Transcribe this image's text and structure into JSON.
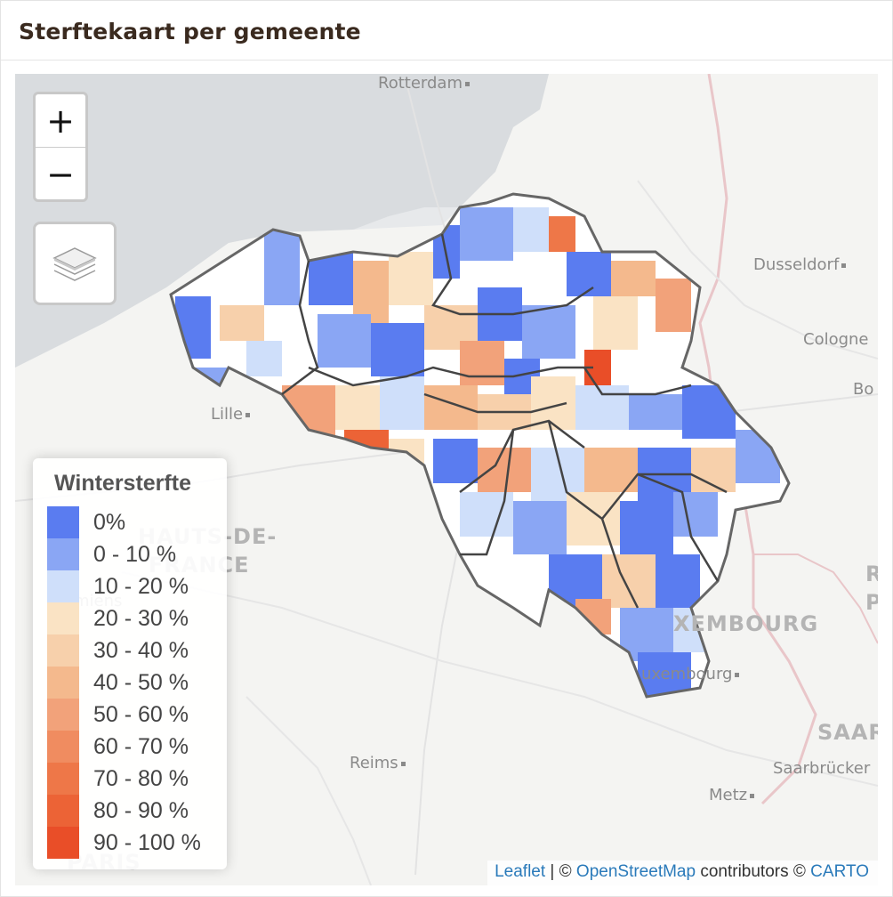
{
  "card": {
    "title": "Sterftekaart per gemeente"
  },
  "zoom": {
    "in_label": "+",
    "out_label": "−"
  },
  "layers_control": {
    "icon": "layers-icon"
  },
  "places": {
    "rotterdam": "Rotterdam",
    "dusseldorf": "Dusseldorf",
    "cologne": "Cologne",
    "bonn": "Bo",
    "lille": "Lille",
    "hauts_de_france_1": "HAUTS-DE-",
    "hauts_de_france_2": "FRANCE",
    "amiens": "miens",
    "reims": "Reims",
    "luxembourg": "XEMBOURG",
    "luxembourg_city": "uxembourg",
    "saar": "SAAR",
    "saarbrucken": "Saarbrücker",
    "metz": "Metz",
    "paris": "PARIS",
    "rp1": "R",
    "rp2": "P"
  },
  "legend": {
    "title": "Wintersterfte",
    "items": [
      {
        "label": "0%",
        "color": "#5a7cf0"
      },
      {
        "label": "0 - 10 %",
        "color": "#8aa6f4"
      },
      {
        "label": "10 - 20 %",
        "color": "#cfdffa"
      },
      {
        "label": "20 - 30 %",
        "color": "#fae3c4"
      },
      {
        "label": "30 - 40 %",
        "color": "#f7d0ab"
      },
      {
        "label": "40 - 50 %",
        "color": "#f4b98d"
      },
      {
        "label": "50 - 60 %",
        "color": "#f2a27a"
      },
      {
        "label": "60 - 70 %",
        "color": "#f08c60"
      },
      {
        "label": "70 - 80 %",
        "color": "#ee7748"
      },
      {
        "label": "80 - 90 %",
        "color": "#ec6336"
      },
      {
        "label": "90 - 100 %",
        "color": "#e94e28"
      }
    ]
  },
  "attribution": {
    "leaflet": "Leaflet",
    "sep": " | © ",
    "osm": "OpenStreetMap",
    "contributors": " contributors © ",
    "carto": "CARTO"
  }
}
